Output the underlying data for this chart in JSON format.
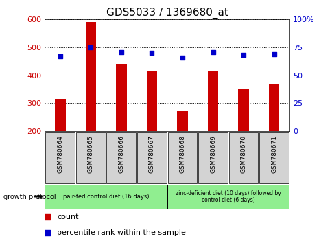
{
  "title": "GDS5033 / 1369680_at",
  "categories": [
    "GSM780664",
    "GSM780665",
    "GSM780666",
    "GSM780667",
    "GSM780668",
    "GSM780669",
    "GSM780670",
    "GSM780671"
  ],
  "count_values": [
    315,
    590,
    440,
    413,
    271,
    415,
    350,
    370
  ],
  "percentile_values": [
    67,
    75,
    71,
    70,
    66,
    71,
    68,
    69
  ],
  "ylim_left": [
    200,
    600
  ],
  "ylim_right": [
    0,
    100
  ],
  "yticks_left": [
    200,
    300,
    400,
    500,
    600
  ],
  "yticks_right": [
    0,
    25,
    50,
    75,
    100
  ],
  "bar_color": "#cc0000",
  "dot_color": "#0000cc",
  "group1_label": "pair-fed control diet (16 days)",
  "group2_label": "zinc-deficient diet (10 days) followed by\ncontrol diet (6 days)",
  "group1_color": "#90ee90",
  "group2_color": "#90ee90",
  "protocol_label": "growth protocol",
  "legend_count_label": "count",
  "legend_pct_label": "percentile rank within the sample",
  "title_fontsize": 11,
  "axis_label_color_left": "#cc0000",
  "axis_label_color_right": "#0000cc",
  "bg_color": "#ffffff",
  "xlabel_area_color": "#d3d3d3",
  "bar_width": 0.35,
  "n_bars": 8,
  "n_group1": 4,
  "n_group2": 4
}
